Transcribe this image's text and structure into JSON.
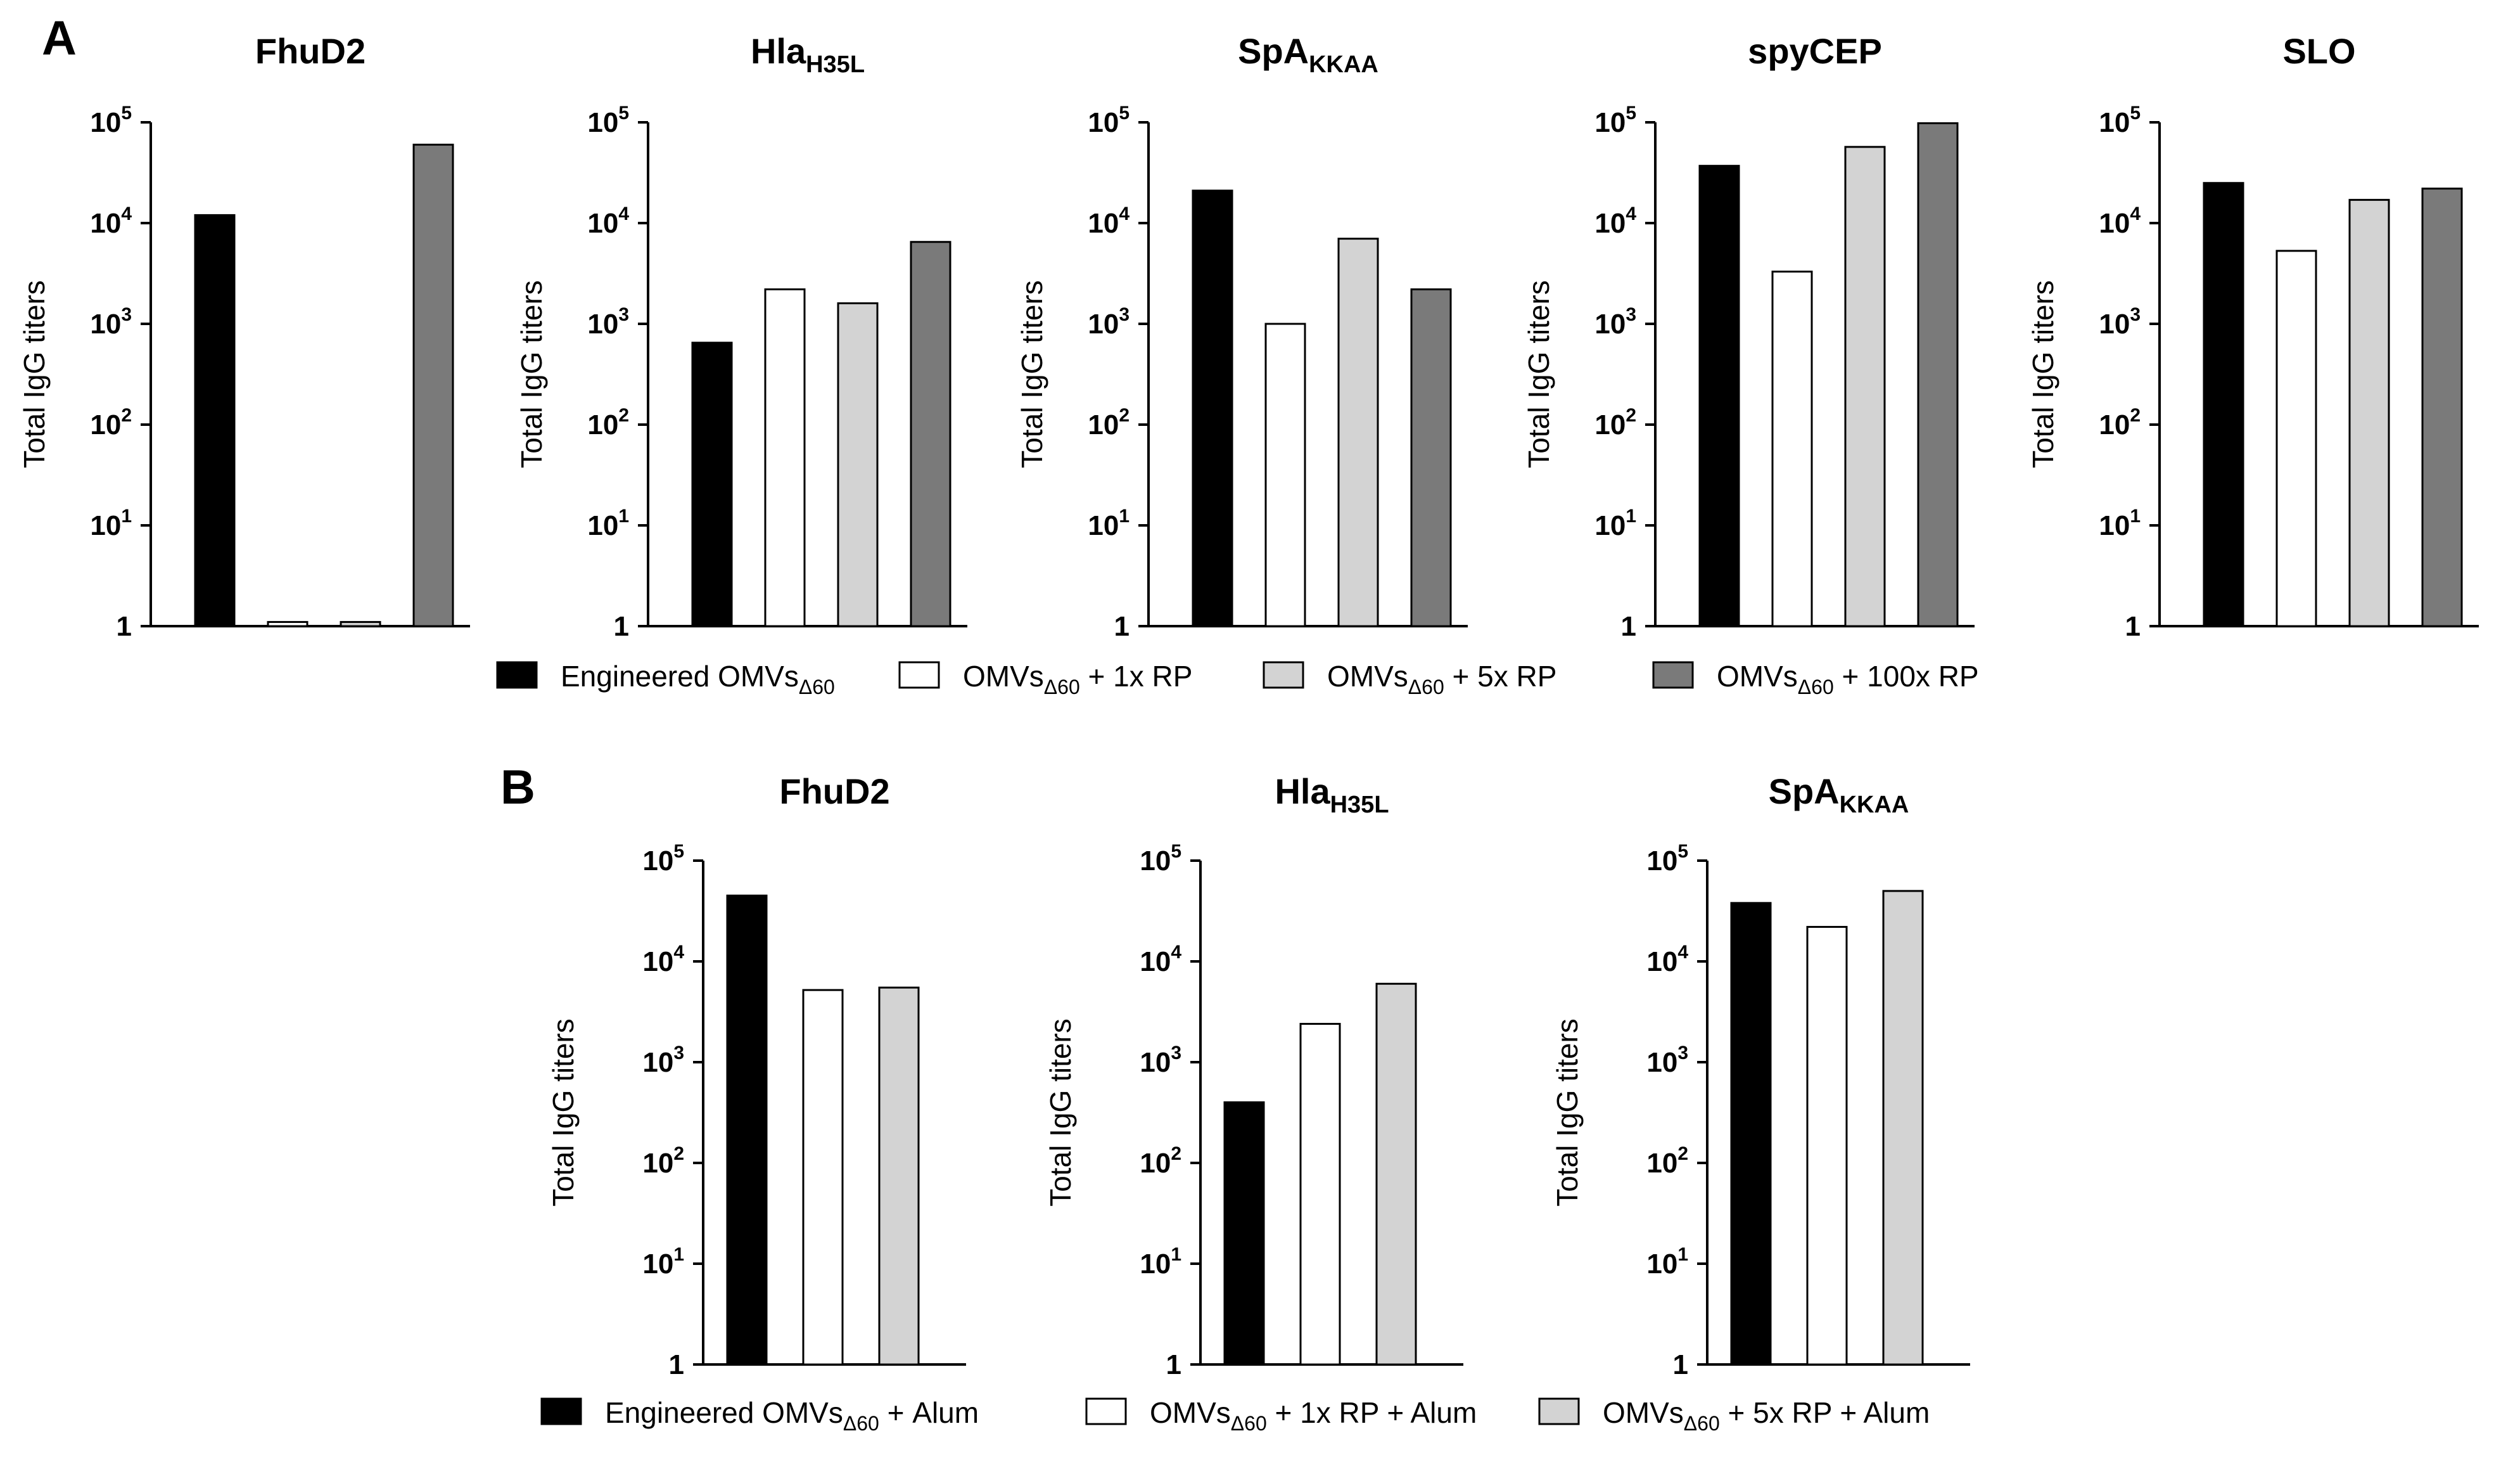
{
  "panel_labels": {
    "a": "A",
    "b": "B"
  },
  "legend_a": [
    {
      "label": "Engineered OMVs",
      "sub": "Δ60",
      "suffix": "",
      "color": "#000000"
    },
    {
      "label": "OMVs",
      "sub": "Δ60",
      "suffix": " + 1x RP",
      "color": "#ffffff"
    },
    {
      "label": "OMVs",
      "sub": "Δ60",
      "suffix": " + 5x RP",
      "color": "#d3d3d3"
    },
    {
      "label": "OMVs",
      "sub": "Δ60",
      "suffix": " + 100x RP",
      "color": "#7a7a7a"
    }
  ],
  "legend_b": [
    {
      "label": "Engineered OMVs",
      "sub": "Δ60",
      "suffix": " + Alum",
      "color": "#000000"
    },
    {
      "label": "OMVs",
      "sub": "Δ60",
      "suffix": " + 1x RP + Alum",
      "color": "#ffffff"
    },
    {
      "label": "OMVs",
      "sub": "Δ60",
      "suffix": " + 5x RP + Alum",
      "color": "#d3d3d3"
    }
  ],
  "chart_data": [
    {
      "panel": "A",
      "type": "bar",
      "title": "FhuD2",
      "title_sub": "",
      "ylabel": "Total IgG titers",
      "yscale": "log",
      "ylim": [
        1,
        100000
      ],
      "yticks": [
        [
          "1",
          ""
        ],
        [
          "10",
          "1"
        ],
        [
          "10",
          "2"
        ],
        [
          "10",
          "3"
        ],
        [
          "10",
          "4"
        ],
        [
          "10",
          "5"
        ]
      ],
      "categories": [
        "Engineered OMVs Δ60",
        "OMVs Δ60 + 1x RP",
        "OMVs Δ60 + 5x RP",
        "OMVs Δ60 + 100x RP"
      ],
      "colors": [
        "#000000",
        "#ffffff",
        "#d3d3d3",
        "#7a7a7a"
      ],
      "values": [
        12000,
        1.1,
        1.1,
        60000
      ]
    },
    {
      "panel": "A",
      "type": "bar",
      "title": "Hla",
      "title_sub": "H35L",
      "ylabel": "Total IgG titers",
      "yscale": "log",
      "ylim": [
        1,
        100000
      ],
      "yticks": [
        [
          "1",
          ""
        ],
        [
          "10",
          "1"
        ],
        [
          "10",
          "2"
        ],
        [
          "10",
          "3"
        ],
        [
          "10",
          "4"
        ],
        [
          "10",
          "5"
        ]
      ],
      "categories": [
        "Engineered OMVs Δ60",
        "OMVs Δ60 + 1x RP",
        "OMVs Δ60 + 5x RP",
        "OMVs Δ60 + 100x RP"
      ],
      "colors": [
        "#000000",
        "#ffffff",
        "#d3d3d3",
        "#7a7a7a"
      ],
      "values": [
        650,
        2200,
        1600,
        6500
      ]
    },
    {
      "panel": "A",
      "type": "bar",
      "title": "SpA",
      "title_sub": "KKAA",
      "ylabel": "Total IgG titers",
      "yscale": "log",
      "ylim": [
        1,
        100000
      ],
      "yticks": [
        [
          "1",
          ""
        ],
        [
          "10",
          "1"
        ],
        [
          "10",
          "2"
        ],
        [
          "10",
          "3"
        ],
        [
          "10",
          "4"
        ],
        [
          "10",
          "5"
        ]
      ],
      "categories": [
        "Engineered OMVs Δ60",
        "OMVs Δ60 + 1x RP",
        "OMVs Δ60 + 5x RP",
        "OMVs Δ60 + 100x RP"
      ],
      "colors": [
        "#000000",
        "#ffffff",
        "#d3d3d3",
        "#7a7a7a"
      ],
      "values": [
        21000,
        1000,
        7000,
        2200
      ]
    },
    {
      "panel": "A",
      "type": "bar",
      "title": "spyCEP",
      "title_sub": "",
      "ylabel": "Total IgG titers",
      "yscale": "log",
      "ylim": [
        1,
        100000
      ],
      "yticks": [
        [
          "1",
          ""
        ],
        [
          "10",
          "1"
        ],
        [
          "10",
          "2"
        ],
        [
          "10",
          "3"
        ],
        [
          "10",
          "4"
        ],
        [
          "10",
          "5"
        ]
      ],
      "categories": [
        "Engineered OMVs Δ60",
        "OMVs Δ60 + 1x RP",
        "OMVs Δ60 + 5x RP",
        "OMVs Δ60 + 100x RP"
      ],
      "colors": [
        "#000000",
        "#ffffff",
        "#d3d3d3",
        "#7a7a7a"
      ],
      "values": [
        37000,
        3300,
        57000,
        98000
      ]
    },
    {
      "panel": "A",
      "type": "bar",
      "title": "SLO",
      "title_sub": "",
      "ylabel": "Total IgG titers",
      "yscale": "log",
      "ylim": [
        1,
        100000
      ],
      "yticks": [
        [
          "1",
          ""
        ],
        [
          "10",
          "1"
        ],
        [
          "10",
          "2"
        ],
        [
          "10",
          "3"
        ],
        [
          "10",
          "4"
        ],
        [
          "10",
          "5"
        ]
      ],
      "categories": [
        "Engineered OMVs Δ60",
        "OMVs Δ60 + 1x RP",
        "OMVs Δ60 + 5x RP",
        "OMVs Δ60 + 100x RP"
      ],
      "colors": [
        "#000000",
        "#ffffff",
        "#d3d3d3",
        "#7a7a7a"
      ],
      "values": [
        25000,
        5300,
        17000,
        22000
      ]
    },
    {
      "panel": "B",
      "type": "bar",
      "title": "FhuD2",
      "title_sub": "",
      "ylabel": "Total IgG titers",
      "yscale": "log",
      "ylim": [
        1,
        100000
      ],
      "yticks": [
        [
          "1",
          ""
        ],
        [
          "10",
          "1"
        ],
        [
          "10",
          "2"
        ],
        [
          "10",
          "3"
        ],
        [
          "10",
          "4"
        ],
        [
          "10",
          "5"
        ]
      ],
      "categories": [
        "Engineered OMVs Δ60 + Alum",
        "OMVs Δ60 + 1x RP + Alum",
        "OMVs Δ60 + 5x RP + Alum"
      ],
      "colors": [
        "#000000",
        "#ffffff",
        "#d3d3d3"
      ],
      "values": [
        45000,
        5200,
        5500
      ]
    },
    {
      "panel": "B",
      "type": "bar",
      "title": "Hla",
      "title_sub": "H35L",
      "ylabel": "Total IgG titers",
      "yscale": "log",
      "ylim": [
        1,
        100000
      ],
      "yticks": [
        [
          "1",
          ""
        ],
        [
          "10",
          "1"
        ],
        [
          "10",
          "2"
        ],
        [
          "10",
          "3"
        ],
        [
          "10",
          "4"
        ],
        [
          "10",
          "5"
        ]
      ],
      "categories": [
        "Engineered OMVs Δ60 + Alum",
        "OMVs Δ60 + 1x RP + Alum",
        "OMVs Δ60 + 5x RP + Alum"
      ],
      "colors": [
        "#000000",
        "#ffffff",
        "#d3d3d3"
      ],
      "values": [
        400,
        2400,
        6000
      ]
    },
    {
      "panel": "B",
      "type": "bar",
      "title": "SpA",
      "title_sub": "KKAA",
      "ylabel": "Total IgG titers",
      "yscale": "log",
      "ylim": [
        1,
        100000
      ],
      "yticks": [
        [
          "1",
          ""
        ],
        [
          "10",
          "1"
        ],
        [
          "10",
          "2"
        ],
        [
          "10",
          "3"
        ],
        [
          "10",
          "4"
        ],
        [
          "10",
          "5"
        ]
      ],
      "categories": [
        "Engineered OMVs Δ60 + Alum",
        "OMVs Δ60 + 1x RP + Alum",
        "OMVs Δ60 + 5x RP + Alum"
      ],
      "colors": [
        "#000000",
        "#ffffff",
        "#d3d3d3"
      ],
      "values": [
        38000,
        22000,
        50000
      ]
    }
  ]
}
